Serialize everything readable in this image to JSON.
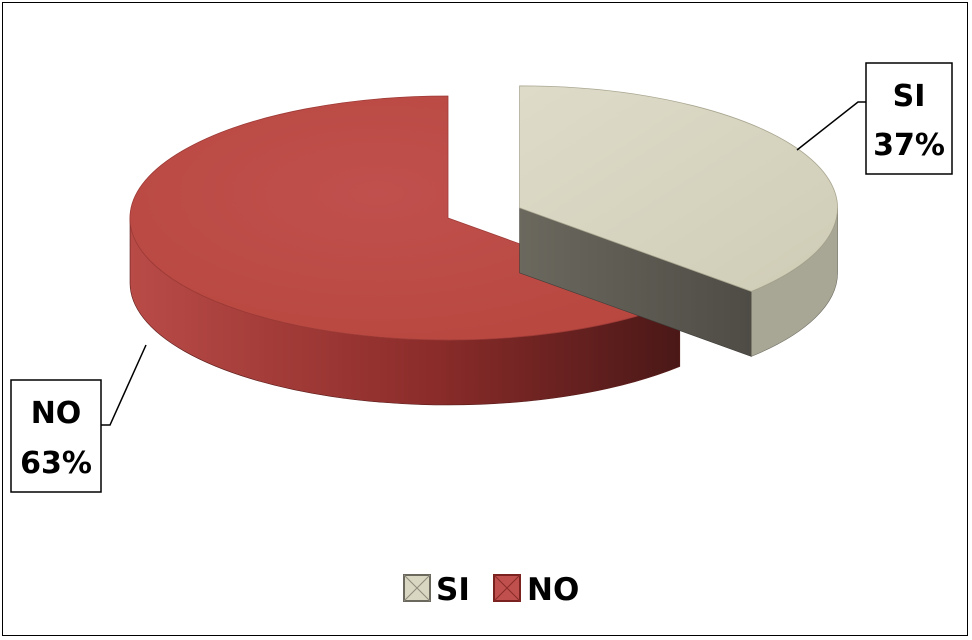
{
  "chart_data": {
    "type": "pie",
    "title": "",
    "series": [
      {
        "name": "SI",
        "value": 37,
        "label": "37%",
        "color": "#D9D7C2",
        "side_color": "#5E5B52"
      },
      {
        "name": "NO",
        "value": 63,
        "label": "63%",
        "color": "#C0504D",
        "side_color": "#8A2A28"
      }
    ],
    "legend": {
      "position": "bottom",
      "entries": [
        "SI",
        "NO"
      ]
    },
    "exploded": "SI",
    "style": "3d"
  }
}
